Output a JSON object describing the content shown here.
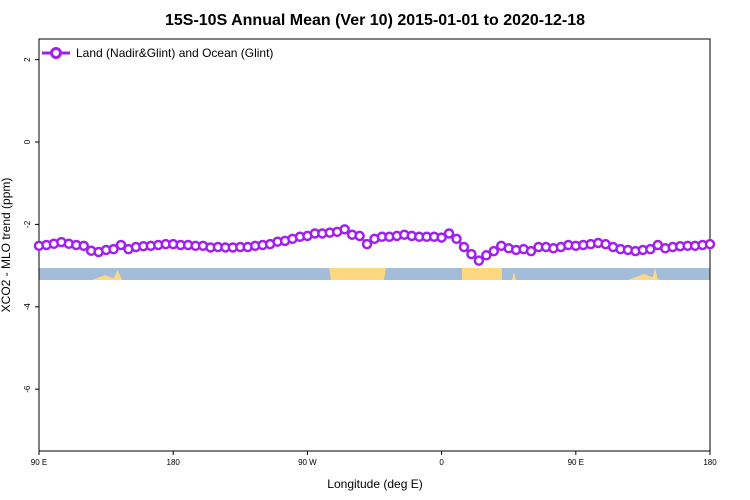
{
  "chart_data": {
    "type": "line",
    "title": "15S-10S Annual Mean (Ver 10)   2015-01-01 to 2020-12-18",
    "xlabel": "Longitude (deg E)",
    "ylabel": "XCO2 - MLO trend (ppm)",
    "xlim": [
      90,
      450
    ],
    "ylim": [
      -7.5,
      2.5
    ],
    "x_ticks": [
      {
        "value": 90,
        "label": "90 E"
      },
      {
        "value": 162,
        "label": "180"
      },
      {
        "value": 234,
        "label": "90 W"
      },
      {
        "value": 306,
        "label": "0"
      },
      {
        "value": 378,
        "label": "90 E"
      },
      {
        "value": 450,
        "label": "180"
      }
    ],
    "y_ticks": [
      {
        "value": 2,
        "label": "2"
      },
      {
        "value": 0,
        "label": "0"
      },
      {
        "value": -2,
        "label": "-2"
      },
      {
        "value": -4,
        "label": "-4"
      },
      {
        "value": -6,
        "label": "-6"
      }
    ],
    "legend": {
      "placement": "top-left"
    },
    "series": [
      {
        "name": "Land (Nadir&Glint) and Ocean (Glint)",
        "color": "#a020f0",
        "marker": "open-circle",
        "x": [
          90,
          94,
          98,
          102,
          106,
          110,
          114,
          118,
          122,
          126,
          130,
          134,
          138,
          142,
          146,
          150,
          154,
          158,
          162,
          166,
          170,
          174,
          178,
          182,
          186,
          190,
          194,
          198,
          202,
          206,
          210,
          214,
          218,
          222,
          226,
          230,
          234,
          238,
          242,
          246,
          250,
          254,
          258,
          262,
          266,
          270,
          274,
          278,
          282,
          286,
          290,
          294,
          298,
          302,
          306,
          310,
          314,
          318,
          322,
          326,
          330,
          334,
          338,
          342,
          346,
          350,
          354,
          358,
          362,
          366,
          370,
          374,
          378,
          382,
          386,
          390,
          394,
          398,
          402,
          406,
          410,
          414,
          418,
          422,
          426,
          430,
          434,
          438,
          442,
          446,
          450
        ],
        "y": [
          -2.52,
          -2.5,
          -2.47,
          -2.43,
          -2.47,
          -2.5,
          -2.52,
          -2.64,
          -2.67,
          -2.62,
          -2.6,
          -2.5,
          -2.6,
          -2.55,
          -2.53,
          -2.52,
          -2.5,
          -2.48,
          -2.48,
          -2.5,
          -2.5,
          -2.52,
          -2.52,
          -2.56,
          -2.55,
          -2.56,
          -2.56,
          -2.55,
          -2.55,
          -2.52,
          -2.5,
          -2.48,
          -2.42,
          -2.4,
          -2.35,
          -2.3,
          -2.28,
          -2.22,
          -2.22,
          -2.2,
          -2.18,
          -2.12,
          -2.25,
          -2.28,
          -2.48,
          -2.35,
          -2.3,
          -2.3,
          -2.28,
          -2.25,
          -2.28,
          -2.3,
          -2.3,
          -2.3,
          -2.32,
          -2.22,
          -2.35,
          -2.55,
          -2.72,
          -2.88,
          -2.75,
          -2.65,
          -2.52,
          -2.58,
          -2.62,
          -2.6,
          -2.65,
          -2.55,
          -2.55,
          -2.58,
          -2.55,
          -2.5,
          -2.52,
          -2.5,
          -2.48,
          -2.45,
          -2.48,
          -2.55,
          -2.6,
          -2.62,
          -2.65,
          -2.62,
          -2.6,
          -2.5,
          -2.58,
          -2.55,
          -2.53,
          -2.52,
          -2.52,
          -2.5,
          -2.48
        ]
      }
    ],
    "colors": {
      "ocean_band": "#a3bcd9",
      "land_band": "#fdd881",
      "series": "#a020f0"
    }
  }
}
